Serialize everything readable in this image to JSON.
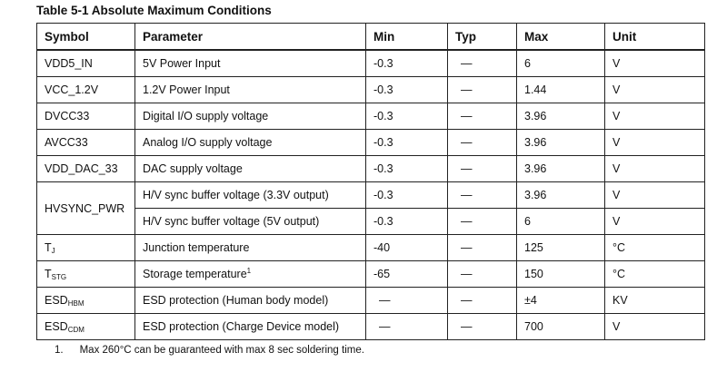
{
  "title": "Table 5-1  Absolute Maximum Conditions",
  "table": {
    "header": [
      "Symbol",
      "Parameter",
      "Min",
      "Typ",
      "Max",
      "Unit"
    ],
    "rows": [
      {
        "symbol": "VDD5_IN",
        "parameter": "5V Power Input",
        "min": "-0.3",
        "typ": "—",
        "max": "6",
        "unit": "V"
      },
      {
        "symbol": "VCC_1.2V",
        "parameter": "1.2V Power Input",
        "min": "-0.3",
        "typ": "—",
        "max": "1.44",
        "unit": "V"
      },
      {
        "symbol": "DVCC33",
        "parameter": "Digital I/O supply voltage",
        "min": "-0.3",
        "typ": "—",
        "max": "3.96",
        "unit": "V"
      },
      {
        "symbol": "AVCC33",
        "parameter": "Analog I/O supply voltage",
        "min": "-0.3",
        "typ": "—",
        "max": "3.96",
        "unit": "V"
      },
      {
        "symbol": "VDD_DAC_33",
        "parameter": "DAC supply voltage",
        "min": "-0.3",
        "typ": "—",
        "max": "3.96",
        "unit": "V"
      },
      {
        "symbol": "HVSYNC_PWR",
        "rowspan": 2,
        "parameter": "H/V sync buffer voltage (3.3V output)",
        "min": "-0.3",
        "typ": "—",
        "max": "3.96",
        "unit": "V"
      },
      {
        "parameter": "H/V sync buffer voltage (5V output)",
        "min": "-0.3",
        "typ": "—",
        "max": "6",
        "unit": "V"
      },
      {
        "symbol": {
          "main": "T",
          "sub": "J"
        },
        "parameter": "Junction temperature",
        "min": "-40",
        "typ": "—",
        "max": "125",
        "unit": "°C"
      },
      {
        "symbol": {
          "main": "T",
          "sub": "STG"
        },
        "parameter": {
          "text": "Storage temperature",
          "sup": "1"
        },
        "min": "-65",
        "typ": "—",
        "max": "150",
        "unit": "°C"
      },
      {
        "symbol": {
          "main": "ESD",
          "sub": "HBM"
        },
        "parameter": "ESD protection (Human body model)",
        "min": "—",
        "typ": "—",
        "max": "±4",
        "unit": "KV"
      },
      {
        "symbol": {
          "main": "ESD",
          "sub": "CDM"
        },
        "parameter": "ESD protection (Charge Device model)",
        "min": "—",
        "typ": "—",
        "max": "700",
        "unit": "V"
      }
    ]
  },
  "footnote": {
    "marker": "1.",
    "text": "Max 260°C can be guaranteed with max 8 sec soldering time."
  }
}
